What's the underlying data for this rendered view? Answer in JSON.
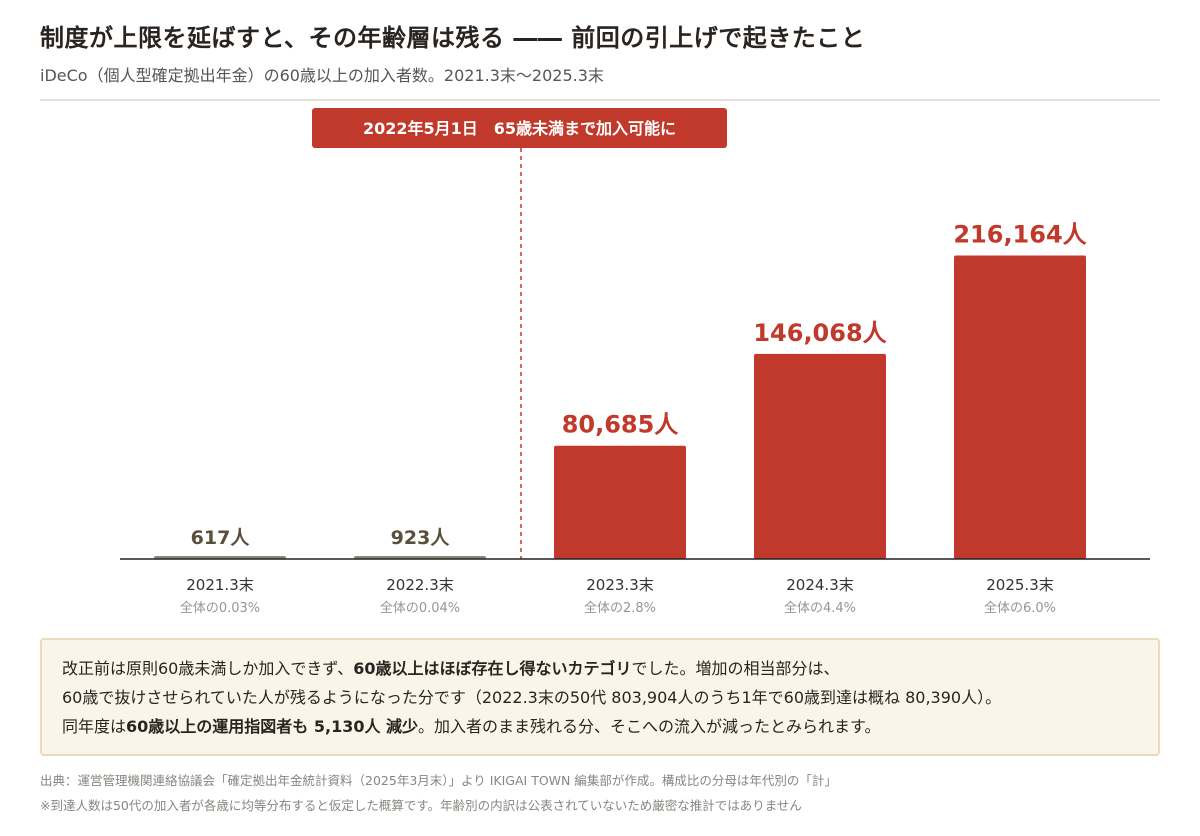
{
  "header": {
    "title": "制度が上限を延ばすと、その年齢層は残る ―― 前回の引上げで起きたこと",
    "subtitle": "iDeCo（個人型確定拠出年金）の60歳以上の加入者数。2021.3末〜2025.3末"
  },
  "chart_data": {
    "type": "bar",
    "categories": [
      "2021.3末",
      "2022.3末",
      "2023.3末",
      "2024.3末",
      "2025.3末"
    ],
    "values": [
      617,
      923,
      80685,
      146068,
      216164
    ],
    "value_labels": [
      "617人",
      "923人",
      "80,685人",
      "146,068人",
      "216,164人"
    ],
    "share_labels": [
      "全体の0.03%",
      "全体の0.04%",
      "全体の2.8%",
      "全体の4.4%",
      "全体の6.0%"
    ],
    "ylim": [
      0,
      250000
    ],
    "grid": false,
    "annotation": {
      "label": "2022年5月1日　65歳未満まで加入可能に",
      "between": [
        "2022.3末",
        "2023.3末"
      ],
      "style": "dashed vertical line"
    },
    "colors": {
      "before": "#8c8676",
      "after": "#c0392b",
      "label_before": "#5a503a",
      "label_after": "#c0392b",
      "axis": "#222222"
    }
  },
  "note": {
    "line1_a": "改正前は原則60歳未満しか加入できず、",
    "line1_b": "60歳以上はほぼ存在し得ないカテゴリ",
    "line1_c": "でした。増加の相当部分は、",
    "line2": "60歳で抜けさせられていた人が残るようになった分です（2022.3末の50代 803,904人のうち1年で60歳到達は概ね 80,390人）。",
    "line3_a": "同年度は",
    "line3_b": "60歳以上の運用指図者も 5,130人 減少",
    "line3_c": "。加入者のまま残れる分、そこへの流入が減ったとみられます。"
  },
  "source": {
    "line1": "出典：運営管理機関連絡協議会「確定拠出年金統計資料（2025年3月末）」より IKIGAI TOWN 編集部が作成。構成比の分母は年代別の「計」",
    "line2": "※到達人数は50代の加入者が各歳に均等分布すると仮定した概算です。年齢別の内訳は公表されていないため厳密な推計ではありません"
  }
}
